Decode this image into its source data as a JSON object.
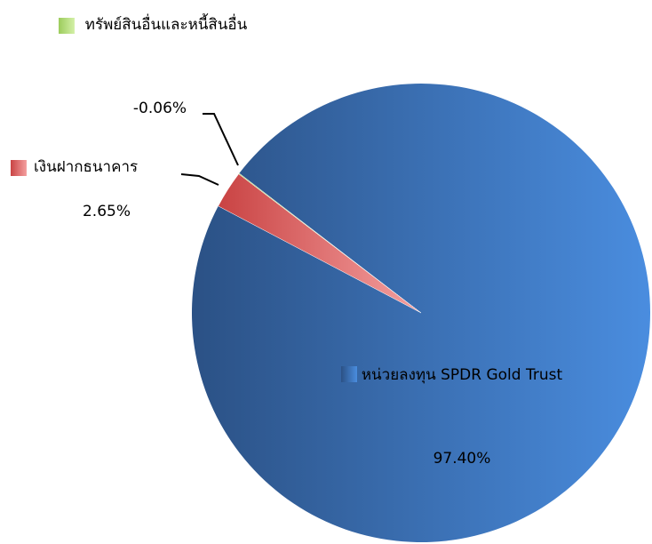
{
  "chart_data": {
    "type": "pie",
    "categories": [
      "หน่วยลงทุน SPDR Gold Trust",
      "เงินฝากธนาคาร",
      "ทรัพย์สินอื่นและหนี้สินอื่น"
    ],
    "values": [
      97.4,
      2.65,
      -0.06
    ],
    "value_labels": [
      "97.40%",
      "2.65%",
      "-0.06%"
    ],
    "colors": [
      [
        "#2b5185",
        "#4a8ddf"
      ],
      [
        "#c94343",
        "#f4a0a0"
      ],
      [
        "#9ccc5c",
        "#d4f0a8"
      ]
    ]
  }
}
